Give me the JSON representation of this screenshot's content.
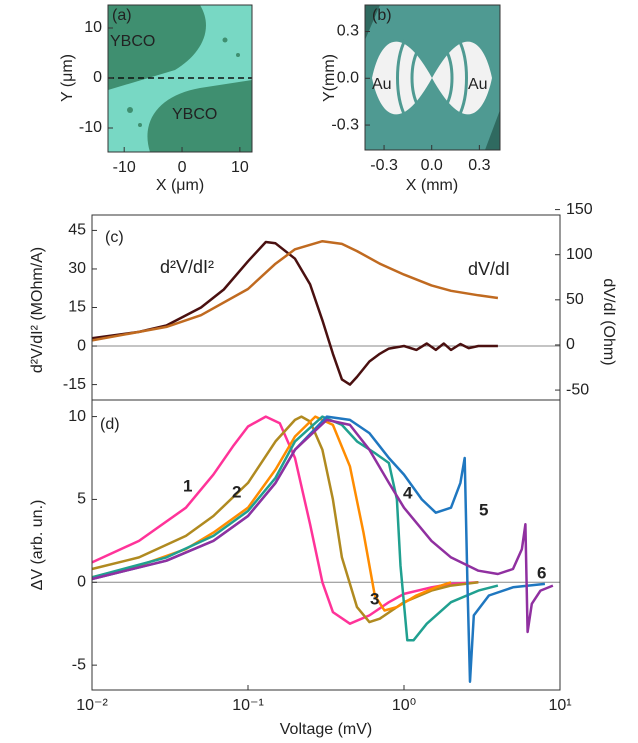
{
  "chart_data": [
    {
      "type": "image",
      "label": "(a)",
      "xlabel": "X (μm)",
      "ylabel": "Y (μm)",
      "annotations": [
        "YBCO",
        "YBCO"
      ],
      "xlim": [
        -12.8,
        12.1
      ],
      "xticks": [
        -10,
        0,
        10
      ],
      "ylim": [
        -14.8,
        14.6
      ],
      "yticks": [
        10,
        0,
        -10
      ]
    },
    {
      "type": "image",
      "label": "(b)",
      "xlabel": "X (mm)",
      "ylabel": "Y(mm)",
      "annotations": [
        "Au",
        "Au"
      ],
      "xlim": [
        -0.42,
        0.43
      ],
      "xticks": [
        -0.3,
        {
          "value": 0,
          "label": "0.0"
        },
        0.3
      ],
      "ylim": [
        -0.46,
        0.47
      ],
      "yticks": [
        0.3,
        {
          "value": 0,
          "label": "0.0"
        },
        -0.3
      ]
    },
    {
      "type": "line",
      "label": "(c)",
      "ylabel": "d²V/dI² (MOhm/A)",
      "y2label": "dV/dI (Ohm)",
      "log_x": true,
      "xlim": [
        0.01,
        10
      ],
      "ylim": [
        -21,
        51
      ],
      "yticks": [
        45,
        30,
        15,
        0,
        -15
      ],
      "y2lim": [
        -61,
        144
      ],
      "y2ticks": [
        150,
        100,
        50,
        0,
        -50
      ],
      "series": [
        {
          "name": "d²V/dI²",
          "color": "#4a1010",
          "x": [
            0.01,
            0.02,
            0.03,
            0.05,
            0.07,
            0.1,
            0.13,
            0.15,
            0.2,
            0.25,
            0.3,
            0.35,
            0.4,
            0.45,
            0.5,
            0.6,
            0.7,
            0.8,
            1,
            1.2,
            1.4,
            1.6,
            1.8,
            2,
            2.3,
            2.6,
            3,
            4
          ],
          "values": [
            3,
            5.5,
            8,
            15,
            22,
            33,
            40.5,
            40,
            34,
            24,
            10,
            -3,
            -13,
            -15,
            -12,
            -6,
            -3,
            -1,
            0,
            -1.5,
            1,
            -1.5,
            1,
            -1.5,
            0.8,
            -0.8,
            0,
            0
          ]
        },
        {
          "name": "dV/dI",
          "color": "#c06a20",
          "axis": "y2",
          "x": [
            0.01,
            0.03,
            0.05,
            0.1,
            0.15,
            0.2,
            0.3,
            0.4,
            0.5,
            0.7,
            1,
            1.5,
            2,
            3,
            4
          ],
          "values": [
            5,
            20,
            33,
            62,
            90,
            106,
            115,
            112,
            104,
            90,
            78,
            66,
            60,
            55,
            52
          ]
        }
      ]
    },
    {
      "type": "line",
      "label": "(d)",
      "xlabel": "Voltage (mV)",
      "ylabel": "ΔV (arb. un.)",
      "log_x": true,
      "xlim": [
        0.01,
        10
      ],
      "xticks": [
        {
          "value": 0.01,
          "label": "10⁻²"
        },
        {
          "value": 0.1,
          "label": "10⁻¹"
        },
        {
          "value": 1,
          "label": "10⁰"
        },
        {
          "value": 10,
          "label": "10¹"
        }
      ],
      "ylim": [
        -6.5,
        11
      ],
      "yticks": [
        10,
        5,
        0,
        -5
      ],
      "series": [
        {
          "name": "1",
          "color": "#ff3399",
          "x": [
            0.01,
            0.02,
            0.04,
            0.06,
            0.08,
            0.1,
            0.13,
            0.16,
            0.2,
            0.25,
            0.3,
            0.35,
            0.45,
            0.6,
            0.8,
            1,
            1.5,
            2,
            3
          ],
          "values": [
            1.2,
            2.5,
            4.5,
            6.5,
            8.2,
            9.4,
            10,
            9.6,
            7.5,
            3.5,
            0,
            -1.8,
            -2.5,
            -2,
            -1.2,
            -0.7,
            -0.3,
            -0.1,
            0
          ]
        },
        {
          "name": "2",
          "color": "#b08a20",
          "x": [
            0.01,
            0.02,
            0.04,
            0.06,
            0.1,
            0.15,
            0.2,
            0.22,
            0.25,
            0.3,
            0.35,
            0.4,
            0.5,
            0.6,
            0.7,
            1,
            1.5,
            2,
            3
          ],
          "values": [
            0.8,
            1.5,
            2.8,
            4,
            6,
            8.5,
            9.8,
            10,
            9.7,
            8,
            5,
            1.5,
            -1.5,
            -2.4,
            -2.2,
            -1.2,
            -0.5,
            -0.2,
            0
          ]
        },
        {
          "name": "3",
          "color": "#ff8c00",
          "x": [
            0.01,
            0.02,
            0.04,
            0.06,
            0.1,
            0.15,
            0.2,
            0.27,
            0.35,
            0.45,
            0.55,
            0.65,
            0.75,
            0.9,
            1.2,
            1.6,
            2
          ],
          "values": [
            0.3,
            1,
            2,
            3,
            4.5,
            6.8,
            8.8,
            10,
            9.5,
            7,
            3,
            -0.8,
            -1.7,
            -1.5,
            -0.8,
            -0.3,
            0
          ]
        },
        {
          "name": "4",
          "color": "#20a090",
          "x": [
            0.01,
            0.03,
            0.06,
            0.1,
            0.15,
            0.2,
            0.3,
            0.4,
            0.5,
            0.65,
            0.8,
            0.9,
            0.95,
            1.05,
            1.15,
            1.4,
            2,
            3,
            4
          ],
          "values": [
            0.3,
            1.5,
            2.8,
            4.3,
            6.3,
            8.5,
            10,
            9.5,
            8.5,
            7.8,
            7.2,
            5,
            1,
            -3.5,
            -3.5,
            -2.5,
            -1.2,
            -0.5,
            -0.2
          ]
        },
        {
          "name": "5",
          "color": "#1f77c0",
          "x": [
            0.01,
            0.03,
            0.06,
            0.1,
            0.15,
            0.2,
            0.32,
            0.45,
            0.6,
            0.8,
            1,
            1.3,
            1.6,
            2,
            2.3,
            2.45,
            2.55,
            2.65,
            2.8,
            3.5,
            5,
            8
          ],
          "values": [
            0.2,
            1.3,
            2.5,
            4,
            6,
            8,
            10,
            9.8,
            9,
            7.5,
            6.5,
            5,
            4.2,
            4.5,
            6,
            7.5,
            0,
            -6,
            -2,
            -0.8,
            -0.3,
            -0.1
          ]
        },
        {
          "name": "6",
          "color": "#9030a0",
          "x": [
            0.01,
            0.03,
            0.06,
            0.1,
            0.15,
            0.2,
            0.32,
            0.45,
            0.6,
            0.8,
            1,
            1.5,
            2,
            3,
            4,
            5,
            5.7,
            6.0,
            6.2,
            6.6,
            7.5,
            9
          ],
          "values": [
            0.2,
            1.3,
            2.5,
            4,
            6,
            8,
            9.8,
            9.5,
            8,
            6,
            4.5,
            2.5,
            1.5,
            0.7,
            0.5,
            0.8,
            2,
            3.5,
            -3,
            -1.3,
            -0.5,
            -0.2
          ]
        }
      ]
    }
  ]
}
